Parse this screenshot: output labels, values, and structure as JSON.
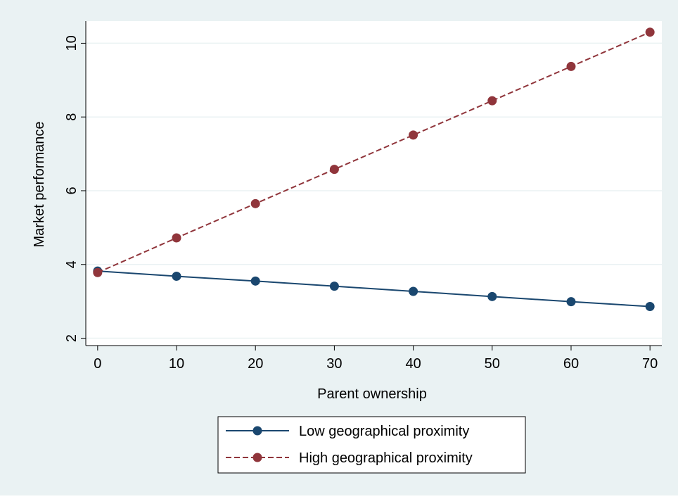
{
  "chart_data": {
    "type": "line",
    "title": "",
    "xlabel": "Parent ownership",
    "ylabel": "Market performance",
    "x": [
      0,
      10,
      20,
      30,
      40,
      50,
      60,
      70
    ],
    "xticks": [
      0,
      10,
      20,
      30,
      40,
      50,
      60,
      70
    ],
    "yticks": [
      2,
      4,
      6,
      8,
      10
    ],
    "xlim": [
      -1.5,
      71.5
    ],
    "ylim": [
      1.8,
      10.6
    ],
    "grid": true,
    "legend_position": "bottom",
    "series": [
      {
        "name": "Low geographical proximity",
        "values": [
          3.82,
          3.68,
          3.55,
          3.41,
          3.27,
          3.13,
          2.99,
          2.86
        ],
        "color": "#1a476f",
        "line_style": "solid",
        "marker": "circle"
      },
      {
        "name": "High geographical proximity",
        "values": [
          3.78,
          4.72,
          5.65,
          6.58,
          7.51,
          8.44,
          9.37,
          10.3
        ],
        "color": "#90353b",
        "line_style": "dashed",
        "marker": "circle"
      }
    ]
  },
  "colors": {
    "outer_background": "#eaf2f3",
    "plot_background": "#ffffff",
    "gridline": "#eaf2f3"
  }
}
